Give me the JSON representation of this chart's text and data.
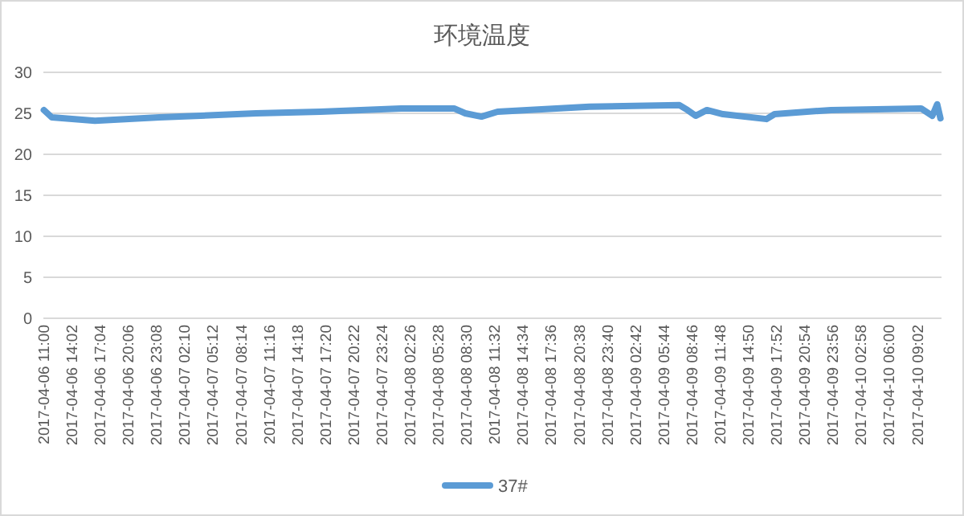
{
  "chart_data": {
    "type": "line",
    "title": "环境温度",
    "x": [
      "2017-04-06T11:03",
      "2017-04-06T11:55",
      "2017-04-06T16:33",
      "2017-04-06T23:29",
      "2017-04-07T09:53",
      "2017-04-07T16:49",
      "2017-04-08T01:29",
      "2017-04-08T07:12",
      "2017-04-08T08:25",
      "2017-04-08T10:09",
      "2017-04-08T11:53",
      "2017-04-08T21:46",
      "2017-04-09T07:28",
      "2017-04-09T08:20",
      "2017-04-09T09:12",
      "2017-04-09T10:25",
      "2017-04-09T12:09",
      "2017-04-09T16:50",
      "2017-04-09T17:42",
      "2017-04-09T23:46",
      "2017-04-10T09:28",
      "2017-04-10T10:41",
      "2017-04-10T11:12",
      "2017-04-10T11:33"
    ],
    "series": [
      {
        "name": "37#",
        "color": "#5b9bd5",
        "values": [
          25.4,
          24.5,
          24.1,
          24.5,
          25.0,
          25.2,
          25.6,
          25.6,
          25.0,
          24.6,
          25.2,
          25.8,
          26.0,
          25.4,
          24.7,
          25.4,
          24.9,
          24.3,
          24.9,
          25.4,
          25.6,
          24.7,
          26.1,
          24.4
        ]
      }
    ],
    "xlim": [
      "2017-04-06T11:00",
      "2017-04-10T11:40"
    ],
    "xticks": [
      {
        "value": "2017-04-06T11:00",
        "label": "2017-04-06 11:00"
      },
      {
        "value": "2017-04-06T14:02",
        "label": "2017-04-06 14:02"
      },
      {
        "value": "2017-04-06T17:04",
        "label": "2017-04-06 17:04"
      },
      {
        "value": "2017-04-06T20:06",
        "label": "2017-04-06 20:06"
      },
      {
        "value": "2017-04-06T23:08",
        "label": "2017-04-06 23:08"
      },
      {
        "value": "2017-04-07T02:10",
        "label": "2017-04-07 02:10"
      },
      {
        "value": "2017-04-07T05:12",
        "label": "2017-04-07 05:12"
      },
      {
        "value": "2017-04-07T08:14",
        "label": "2017-04-07 08:14"
      },
      {
        "value": "2017-04-07T11:16",
        "label": "2017-04-07 11:16"
      },
      {
        "value": "2017-04-07T14:18",
        "label": "2017-04-07 14:18"
      },
      {
        "value": "2017-04-07T17:20",
        "label": "2017-04-07 17:20"
      },
      {
        "value": "2017-04-07T20:22",
        "label": "2017-04-07 20:22"
      },
      {
        "value": "2017-04-07T23:24",
        "label": "2017-04-07 23:24"
      },
      {
        "value": "2017-04-08T02:26",
        "label": "2017-04-08 02:26"
      },
      {
        "value": "2017-04-08T05:28",
        "label": "2017-04-08 05:28"
      },
      {
        "value": "2017-04-08T08:30",
        "label": "2017-04-08 08:30"
      },
      {
        "value": "2017-04-08T11:32",
        "label": "2017-04-08 11:32"
      },
      {
        "value": "2017-04-08T14:34",
        "label": "2017-04-08 14:34"
      },
      {
        "value": "2017-04-08T17:36",
        "label": "2017-04-08 17:36"
      },
      {
        "value": "2017-04-08T20:38",
        "label": "2017-04-08 20:38"
      },
      {
        "value": "2017-04-08T23:40",
        "label": "2017-04-08 23:40"
      },
      {
        "value": "2017-04-09T02:42",
        "label": "2017-04-09 02:42"
      },
      {
        "value": "2017-04-09T05:44",
        "label": "2017-04-09 05:44"
      },
      {
        "value": "2017-04-09T08:46",
        "label": "2017-04-09 08:46"
      },
      {
        "value": "2017-04-09T11:48",
        "label": "2017-04-09 11:48"
      },
      {
        "value": "2017-04-09T14:50",
        "label": "2017-04-09 14:50"
      },
      {
        "value": "2017-04-09T17:52",
        "label": "2017-04-09 17:52"
      },
      {
        "value": "2017-04-09T20:54",
        "label": "2017-04-09 20:54"
      },
      {
        "value": "2017-04-09T23:56",
        "label": "2017-04-09 23:56"
      },
      {
        "value": "2017-04-10T02:58",
        "label": "2017-04-10 02:58"
      },
      {
        "value": "2017-04-10T06:00",
        "label": "2017-04-10 06:00"
      },
      {
        "value": "2017-04-10T09:02",
        "label": "2017-04-10 09:02"
      }
    ],
    "ylim": [
      0,
      30
    ],
    "yticks": [
      0,
      5,
      10,
      15,
      20,
      25,
      30
    ],
    "grid": "y",
    "legend": "bottom",
    "marker": "none",
    "line_style": "solid"
  }
}
